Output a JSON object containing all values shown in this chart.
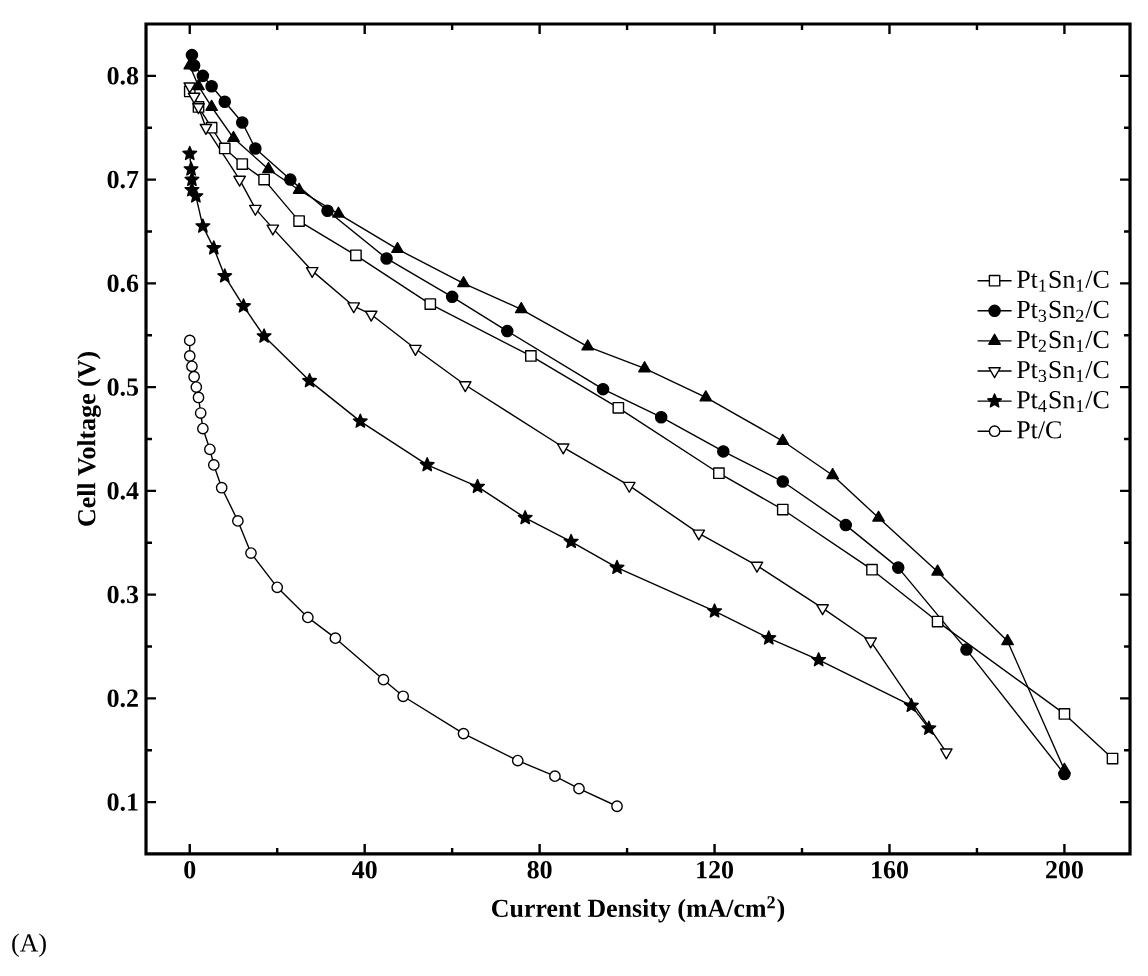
{
  "chart_data": {
    "type": "line",
    "xlabel": "Current Density (mA/cm$^{2}$)",
    "ylabel": "Cell Voltage (V)",
    "annotations": [
      "(A)"
    ],
    "xlim": [
      -10,
      215
    ],
    "ylim": [
      0.05,
      0.85
    ],
    "xticks": [
      0,
      40,
      80,
      120,
      160,
      200
    ],
    "yticks": [
      0.1,
      0.2,
      0.3,
      0.4,
      0.5,
      0.6,
      0.7,
      0.8
    ],
    "legend": "right",
    "grid": false,
    "line_style": "solid",
    "series": [
      {
        "name": "Pt$_{1}$Sn$_{1}$/C",
        "color": "#000000",
        "marker": "square",
        "x": [
          0,
          2,
          5,
          8,
          12,
          17,
          25,
          38,
          55,
          78,
          98,
          121,
          135.6,
          156,
          171,
          200,
          211
        ],
        "values": [
          0.785,
          0.77,
          0.75,
          0.73,
          0.715,
          0.7,
          0.66,
          0.627,
          0.58,
          0.53,
          0.48,
          0.417,
          0.382,
          0.324,
          0.274,
          0.185,
          0.142
        ]
      },
      {
        "name": "Pt$_{3}$Sn$_{2}$/C",
        "color": "#000000",
        "marker": "circle",
        "x": [
          0.5,
          1,
          3,
          5,
          8,
          12,
          15,
          23,
          31.5,
          45,
          60,
          72.6,
          94.5,
          107.8,
          122,
          135.6,
          150,
          162,
          177.6,
          200
        ],
        "values": [
          0.82,
          0.81,
          0.8,
          0.79,
          0.775,
          0.755,
          0.73,
          0.7,
          0.67,
          0.624,
          0.587,
          0.554,
          0.498,
          0.471,
          0.438,
          0.409,
          0.367,
          0.326,
          0.247,
          0.127
        ]
      },
      {
        "name": "Pt$_{2}$Sn$_{1}$/C",
        "color": "#000000",
        "marker": "triangle",
        "x": [
          0,
          2,
          5,
          10,
          18,
          25,
          34,
          47.5,
          62.6,
          75.8,
          91,
          104,
          118,
          135.6,
          147,
          157.5,
          171,
          187,
          200
        ],
        "values": [
          0.81,
          0.79,
          0.77,
          0.74,
          0.71,
          0.69,
          0.667,
          0.633,
          0.6,
          0.575,
          0.539,
          0.518,
          0.49,
          0.448,
          0.415,
          0.374,
          0.322,
          0.255,
          0.131
        ]
      },
      {
        "name": "Pt$_{3}$Sn$_{1}$/C",
        "color": "#000000",
        "marker": "triangle_down",
        "x": [
          0,
          1,
          2,
          3.7,
          11.4,
          15,
          19,
          28,
          37.5,
          41.5,
          51.6,
          63,
          85.4,
          100.5,
          116.4,
          129.7,
          144.7,
          155.7,
          173
        ],
        "values": [
          0.79,
          0.78,
          0.77,
          0.75,
          0.7,
          0.672,
          0.653,
          0.612,
          0.578,
          0.57,
          0.537,
          0.502,
          0.442,
          0.405,
          0.359,
          0.328,
          0.287,
          0.255,
          0.148
        ]
      },
      {
        "name": "Pt$_{4}$Sn$_{1}$/C",
        "color": "#000000",
        "marker": "star",
        "x": [
          0,
          0.3,
          0.5,
          0.5,
          1.4,
          3,
          5.5,
          8,
          12.3,
          17,
          27.4,
          39,
          54.3,
          65.8,
          76.7,
          87.2,
          97.7,
          120,
          132.4,
          143.8,
          165,
          169
        ],
        "values": [
          0.725,
          0.71,
          0.7,
          0.69,
          0.684,
          0.655,
          0.634,
          0.607,
          0.578,
          0.549,
          0.506,
          0.467,
          0.425,
          0.404,
          0.374,
          0.351,
          0.326,
          0.284,
          0.258,
          0.237,
          0.193,
          0.171
        ]
      },
      {
        "name": "Pt/C",
        "color": "#000000",
        "marker": "circle",
        "x": [
          0,
          0,
          0.5,
          1,
          1.5,
          2,
          2.5,
          3,
          4.6,
          5.5,
          7.3,
          11,
          14,
          20,
          27,
          33.3,
          44.3,
          48.8,
          62.6,
          75,
          83.5,
          89,
          97.7
        ],
        "values": [
          0.545,
          0.53,
          0.52,
          0.51,
          0.5,
          0.49,
          0.475,
          0.46,
          0.44,
          0.425,
          0.403,
          0.371,
          0.34,
          0.307,
          0.278,
          0.258,
          0.218,
          0.202,
          0.166,
          0.14,
          0.125,
          0.113,
          0.096
        ]
      }
    ]
  }
}
